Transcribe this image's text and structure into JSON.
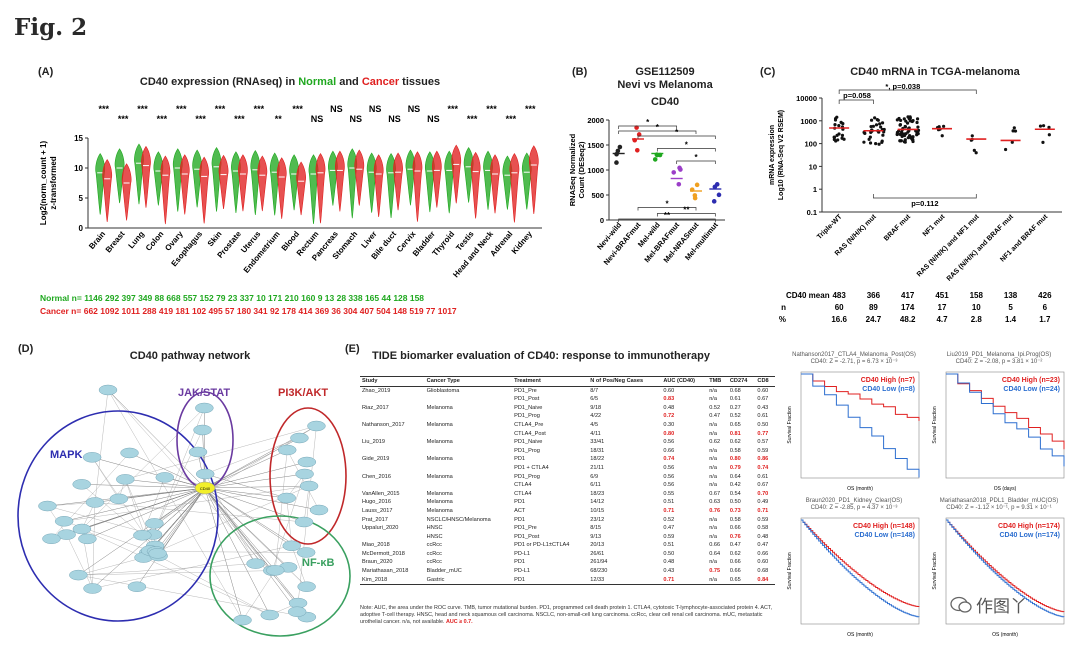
{
  "figure_title": "Fig. 2",
  "colors": {
    "normal": "#1fa81f",
    "cancer": "#e02020",
    "purple": "#6a3aa0",
    "blue": "#2d2db0",
    "teal": "#3aa060"
  },
  "panelA": {
    "label": "(A)",
    "title_parts": [
      "CD40 expression (RNAseq) in ",
      "Normal",
      " and ",
      "Cancer",
      " tissues"
    ],
    "ylabel": "Log2(norm_count + 1)\nz-transformed",
    "chart_data": {
      "type": "violin",
      "title": "CD40 expression (RNAseq) in Normal and Cancer tissues",
      "ylabel": "Log2(norm_count + 1) z-transformed",
      "ylim": [
        0,
        15
      ],
      "yticks": [
        0,
        5,
        10,
        15
      ],
      "tissues": [
        "Brain",
        "Breast",
        "Lung",
        "Colon",
        "Ovary",
        "Esophagus",
        "Skin",
        "Prostate",
        "Uterus",
        "Endometrium",
        "Blood",
        "Rectum",
        "Pancreas",
        "Stomach",
        "Liver",
        "Bile duct",
        "Cervix",
        "Bladder",
        "Thyroid",
        "Testis",
        "Head and Neck",
        "Adrenal",
        "Kidney"
      ],
      "significance": [
        "***",
        "***",
        "***",
        "***",
        "***",
        "***",
        "***",
        "***",
        "***",
        "**",
        "***",
        "NS",
        "NS",
        "NS",
        "NS",
        "NS",
        "NS",
        "NS",
        "***",
        "***",
        "***",
        "***",
        "***"
      ],
      "normal_median": [
        9.2,
        10.0,
        10.8,
        9.5,
        10.0,
        9.8,
        10.2,
        9.5,
        9.7,
        9.3,
        9.0,
        9.0,
        9.6,
        10.0,
        9.3,
        9.2,
        9.8,
        9.5,
        9.6,
        10.2,
        9.6,
        8.8,
        9.3
      ],
      "cancer_median": [
        8.2,
        7.5,
        10.4,
        8.8,
        9.0,
        8.6,
        8.9,
        9.0,
        8.8,
        8.5,
        7.8,
        9.2,
        9.6,
        9.8,
        9.0,
        9.3,
        9.5,
        9.6,
        10.6,
        9.4,
        9.0,
        9.2,
        10.5
      ]
    },
    "normal_counts_label": "Normal n=",
    "normal_counts": "1146 292 397 349 88 668 557 152 79 23 337 10 171 210 160 9 13 28 338 165 44 128 158",
    "cancer_counts_label": "Cancer n=",
    "cancer_counts": "662 1092 1011 288 419 181 102 495 57 180 341 92 178 414 369 36 304 407 504 148 519 77 1017"
  },
  "panelB": {
    "label": "(B)",
    "title": "GSE112509",
    "subtitle": "Nevi vs Melanoma",
    "gene": "CD40",
    "ylabel": "RNASeq Normalized\nCount (DESeq2)",
    "chart_data": {
      "type": "scatter",
      "ylim": [
        0,
        2000
      ],
      "yticks": [
        0,
        500,
        1000,
        1500,
        2000
      ],
      "groups": [
        "Nevi-wild",
        "Nevi-BRAFmut",
        "Mel-wild",
        "Mel-BRAFmut",
        "Mel-NRASmut",
        "Mel-multimut"
      ],
      "means": [
        1330,
        1620,
        1330,
        830,
        580,
        620
      ],
      "significance": [
        "*",
        "*",
        "*",
        "*",
        "*",
        "*",
        "**",
        "**"
      ]
    }
  },
  "panelC": {
    "label": "(C)",
    "title": "CD40 mRNA in TCGA-melanoma",
    "ylabel": "mRNA expression\nLog10 (RNA-Seq V2 RSEM)",
    "p1": "p=0.058",
    "p2": "*, p=0.038",
    "p3": "p=0.112",
    "chart_data": {
      "type": "scatter",
      "yticks": [
        "10000",
        "1000",
        "100",
        "10",
        "1",
        "0.1"
      ],
      "groups": [
        "Triple-WT",
        "RAS (N/H/K) mut",
        "BRAF mut",
        "NF1 mut",
        "RAS (N/H/K) and NF1 mut",
        "RAS (N/H/K) and BRAF mut",
        "NF1 and BRAF mut"
      ],
      "means": [
        483,
        366,
        417,
        451,
        158,
        138,
        426
      ],
      "n": [
        60,
        89,
        174,
        17,
        10,
        5,
        6
      ],
      "percent": [
        16.6,
        24.7,
        48.2,
        4.7,
        2.8,
        1.4,
        1.7
      ]
    },
    "row_labels": [
      "CD40 mean",
      "n",
      "%"
    ],
    "means_text": [
      "483",
      "366",
      "417",
      "451",
      "158",
      "138",
      "426"
    ],
    "n_text": [
      "60",
      "89",
      "174",
      "17",
      "10",
      "5",
      "6"
    ],
    "pct_text": [
      "16.6",
      "24.7",
      "48.2",
      "4.7",
      "2.8",
      "1.4",
      "1.7"
    ]
  },
  "panelD": {
    "label": "(D)",
    "title": "CD40 pathway network",
    "groups": [
      "MAPK",
      "JAK/STAT",
      "PI3K/AKT",
      "NF-κB"
    ],
    "hub": "CD40"
  },
  "panelE": {
    "label": "(E)",
    "title": "TIDE biomarker evaluation of CD40: response to immunotherapy",
    "headers": [
      "Study",
      "Cancer Type",
      "Treatment",
      "N of Pos/Neg Cases",
      "AUC (CD40)",
      "TMB",
      "CD274",
      "CD8"
    ],
    "rows": [
      [
        "Zhao_2019",
        "Glioblastoma",
        "PD1_Pre",
        "8/7",
        "0.60",
        "n/a",
        "0.68",
        "0.60"
      ],
      [
        "",
        "",
        "PD1_Post",
        "6/5",
        "0.83",
        "n/a",
        "0.61",
        "0.67"
      ],
      [
        "Riaz_2017",
        "Melanoma",
        "PD1_Naive",
        "9/18",
        "0.48",
        "0.52",
        "0.27",
        "0.43"
      ],
      [
        "",
        "",
        "PD1_Prog",
        "4/22",
        "0.72",
        "0.47",
        "0.52",
        "0.61"
      ],
      [
        "Nathanson_2017",
        "Melanoma",
        "CTLA4_Pre",
        "4/5",
        "0.30",
        "n/a",
        "0.65",
        "0.50"
      ],
      [
        "",
        "",
        "CTLA4_Post",
        "4/11",
        "0.80",
        "n/a",
        "0.81",
        "0.77"
      ],
      [
        "Liu_2019",
        "Melanoma",
        "PD1_Naive",
        "33/41",
        "0.56",
        "0.62",
        "0.62",
        "0.57"
      ],
      [
        "",
        "",
        "PD1_Prog",
        "18/31",
        "0.66",
        "n/a",
        "0.58",
        "0.59"
      ],
      [
        "Gide_2019",
        "Melanoma",
        "PD1",
        "18/22",
        "0.74",
        "n/a",
        "0.80",
        "0.86"
      ],
      [
        "",
        "",
        "PD1 + CTLA4",
        "21/11",
        "0.56",
        "n/a",
        "0.79",
        "0.74"
      ],
      [
        "Chen_2016",
        "Melanoma",
        "PD1_Prog",
        "6/9",
        "0.56",
        "n/a",
        "0.64",
        "0.61"
      ],
      [
        "",
        "",
        "CTLA4",
        "6/11",
        "0.56",
        "n/a",
        "0.42",
        "0.67"
      ],
      [
        "VanAllen_2015",
        "Melanoma",
        "CTLA4",
        "18/23",
        "0.55",
        "0.67",
        "0.54",
        "0.70"
      ],
      [
        "Hugo_2016",
        "Melanoma",
        "PD1",
        "14/12",
        "0.51",
        "0.63",
        "0.50",
        "0.49"
      ],
      [
        "Lauss_2017",
        "Melanoma",
        "ACT",
        "10/15",
        "0.71",
        "0.76",
        "0.73",
        "0.71"
      ],
      [
        "Prat_2017",
        "NSCLC/HNSC/Melanoma",
        "PD1",
        "23/12",
        "0.52",
        "n/a",
        "0.58",
        "0.59"
      ],
      [
        "Uppaluri_2020",
        "HNSC",
        "PD1_Pre",
        "8/15",
        "0.47",
        "n/a",
        "0.66",
        "0.58"
      ],
      [
        "",
        "HNSC",
        "PD1_Post",
        "9/13",
        "0.59",
        "n/a",
        "0.76",
        "0.48"
      ],
      [
        "Miao_2018",
        "ccRcc",
        "PD1 or PD-L1±CTLA4",
        "20/13",
        "0.51",
        "0.66",
        "0.47",
        "0.47"
      ],
      [
        "McDermott_2018",
        "ccRcc",
        "PD-L1",
        "26/61",
        "0.50",
        "0.64",
        "0.62",
        "0.66"
      ],
      [
        "Braun_2020",
        "ccRcc",
        "PD1",
        "261/94",
        "0.48",
        "n/a",
        "0.66",
        "0.60"
      ],
      [
        "Mariathasan_2018",
        "Bladder_mUC",
        "PD-L1",
        "68/230",
        "0.43",
        "0.75",
        "0.66",
        "0.68"
      ],
      [
        "Kim_2018",
        "Gastric",
        "PD1",
        "12/33",
        "0.71",
        "n/a",
        "0.65",
        "0.84"
      ]
    ],
    "note": "Note: AUC, the area under the ROC curve. TMB, tumor mutational burden. PD1, programmed cell death protein 1. CTLA4, cytotoxic T-lymphocyte-associated protein 4. ACT, adoptive T-cell therapy. HNSC, head and neck squamous cell carcinoma. NSCLC, non-small-cell lung carcinoma. ccRcc, clear cell renal cell carcinoma. mUC, metastatic urothelial cancer. n/a, not available.",
    "note_highlight": "AUC ≥ 0.7."
  },
  "km": [
    {
      "title": "Nathanson2017_CTLA4_Melanoma_Post(OS)",
      "stat": "CD40: Z = -2.71, p = 6.73 × 10⁻³",
      "high": "CD40 High (n=7)",
      "low": "CD40 Low (n=8)",
      "ylabel": "Survival Fraction",
      "xlabel": "OS (month)"
    },
    {
      "title": "Liu2019_PD1_Melanoma_Ipi.Prog(OS)",
      "stat": "CD40: Z = -2.08, p = 3.81 × 10⁻²",
      "high": "CD40 High (n=23)",
      "low": "CD40 Low (n=24)",
      "ylabel": "Survival Fraction",
      "xlabel": "OS (days)"
    },
    {
      "title": "Braun2020_PD1_Kidney_Clear(OS)",
      "stat": "CD40: Z = -2.85, p = 4.37 × 10⁻³",
      "high": "CD40 High (n=148)",
      "low": "CD40 Low (n=148)",
      "ylabel": "Survival Fraction",
      "xlabel": "OS (month)"
    },
    {
      "title": "Mariathasan2018_PDL1_Bladder_mUC(OS)",
      "stat": "CD40: Z = -1.12 × 10⁻¹, p = 9.31 × 10⁻¹",
      "high": "CD40 High (n=174)",
      "low": "CD40 Low (n=174)",
      "ylabel": "Survival Fraction",
      "xlabel": "OS (month)"
    }
  ],
  "watermark": "作图丫"
}
